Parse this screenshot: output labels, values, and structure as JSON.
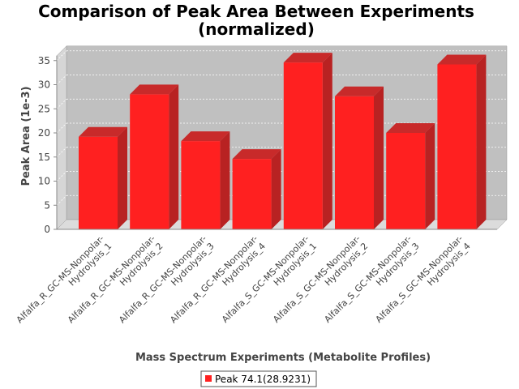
{
  "chart_data": {
    "type": "bar",
    "title_lines": [
      "Comparison of Peak Area Between Experiments",
      "(normalized)"
    ],
    "xlabel": "Mass Spectrum Experiments (Metabolite Profiles)",
    "ylabel": "Peak Area (1e-3)",
    "ylim": [
      0,
      36
    ],
    "yticks": [
      0,
      5,
      10,
      15,
      20,
      25,
      30,
      35
    ],
    "categories": [
      [
        "Alfalfa_R_GC-MS-Nonpolar-",
        "Hydrolysis_1"
      ],
      [
        "Alfalfa_R_GC-MS-Nonpolar-",
        "Hydrolysis_2"
      ],
      [
        "Alfalfa_R_GC-MS-Nonpolar-",
        "Hydrolysis_3"
      ],
      [
        "Alfalfa_R_GC-MS-Nonpolar-",
        "Hydrolysis_4"
      ],
      [
        "Alfalfa_S_GC-MS-Nonpolar-",
        "Hydrolysis_1"
      ],
      [
        "Alfalfa_S_GC-MS-Nonpolar-",
        "Hydrolysis_2"
      ],
      [
        "Alfalfa_S_GC-MS-Nonpolar-",
        "Hydrolysis_3"
      ],
      [
        "Alfalfa_S_GC-MS-Nonpolar-",
        "Hydrolysis_4"
      ]
    ],
    "series": [
      {
        "name": "Peak 74.1(28.9231)",
        "color": "#ff2020",
        "values": [
          19.2,
          28.0,
          18.3,
          14.6,
          34.6,
          27.6,
          20.0,
          34.2
        ]
      }
    ],
    "grid": true,
    "legend_position": "bottom-center",
    "style": "3d"
  }
}
